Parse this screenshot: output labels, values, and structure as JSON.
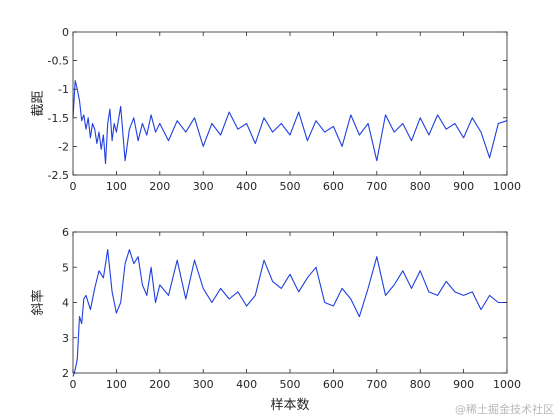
{
  "chart_data": [
    {
      "type": "line",
      "title": "",
      "xlabel": "",
      "ylabel": "截距",
      "xlim": [
        0,
        1000
      ],
      "ylim": [
        -2.5,
        0
      ],
      "xticks": [
        0,
        100,
        200,
        300,
        400,
        500,
        600,
        700,
        800,
        900,
        1000
      ],
      "yticks": [
        0,
        -0.5,
        -1,
        -1.5,
        -2,
        -2.5
      ],
      "ytick_labels": [
        "0",
        "-0.5",
        "-1",
        "-1.5",
        "-2",
        "-2.5"
      ],
      "grid": false,
      "color": "#1f3fe0",
      "series": [
        {
          "x": [
            0,
            5,
            10,
            15,
            20,
            25,
            30,
            35,
            40,
            45,
            50,
            55,
            60,
            65,
            70,
            75,
            80,
            85,
            90,
            95,
            100,
            110,
            120,
            130,
            140,
            150,
            160,
            170,
            180,
            190,
            200,
            220,
            240,
            260,
            280,
            300,
            320,
            340,
            360,
            380,
            400,
            420,
            440,
            460,
            480,
            500,
            520,
            540,
            560,
            580,
            600,
            620,
            640,
            660,
            680,
            700,
            720,
            740,
            760,
            780,
            800,
            820,
            840,
            860,
            880,
            900,
            920,
            940,
            960,
            980,
            1000
          ],
          "values": [
            -1.5,
            -0.85,
            -1.0,
            -1.2,
            -1.55,
            -1.45,
            -1.7,
            -1.5,
            -1.85,
            -1.6,
            -1.7,
            -1.95,
            -1.75,
            -2.05,
            -1.8,
            -2.3,
            -1.6,
            -1.35,
            -1.9,
            -1.6,
            -1.75,
            -1.3,
            -2.25,
            -1.7,
            -1.5,
            -1.9,
            -1.6,
            -1.8,
            -1.45,
            -1.75,
            -1.6,
            -1.9,
            -1.55,
            -1.75,
            -1.5,
            -2.0,
            -1.6,
            -1.8,
            -1.4,
            -1.7,
            -1.6,
            -1.95,
            -1.5,
            -1.75,
            -1.6,
            -1.8,
            -1.4,
            -1.9,
            -1.55,
            -1.75,
            -1.65,
            -2.0,
            -1.45,
            -1.8,
            -1.6,
            -2.25,
            -1.45,
            -1.75,
            -1.6,
            -1.9,
            -1.5,
            -1.8,
            -1.45,
            -1.7,
            -1.6,
            -1.85,
            -1.5,
            -1.75,
            -2.2,
            -1.6,
            -1.55
          ]
        }
      ]
    },
    {
      "type": "line",
      "title": "",
      "xlabel": "样本数",
      "ylabel": "斜率",
      "xlim": [
        0,
        1000
      ],
      "ylim": [
        2,
        6
      ],
      "xticks": [
        0,
        100,
        200,
        300,
        400,
        500,
        600,
        700,
        800,
        900,
        1000
      ],
      "yticks": [
        2,
        3,
        4,
        5,
        6
      ],
      "ytick_labels": [
        "2",
        "3",
        "4",
        "5",
        "6"
      ],
      "grid": false,
      "color": "#1f3fe0",
      "series": [
        {
          "x": [
            0,
            5,
            10,
            15,
            20,
            25,
            30,
            40,
            50,
            60,
            70,
            80,
            90,
            100,
            110,
            120,
            130,
            140,
            150,
            160,
            170,
            180,
            190,
            200,
            220,
            240,
            260,
            280,
            300,
            320,
            340,
            360,
            380,
            400,
            420,
            440,
            460,
            480,
            500,
            520,
            540,
            560,
            580,
            600,
            620,
            640,
            660,
            680,
            700,
            720,
            740,
            760,
            780,
            800,
            820,
            840,
            860,
            880,
            900,
            920,
            940,
            960,
            980,
            1000
          ],
          "values": [
            1.9,
            2.1,
            2.4,
            3.6,
            3.4,
            4.1,
            4.2,
            3.8,
            4.4,
            4.9,
            4.7,
            5.5,
            4.3,
            3.7,
            4.0,
            5.1,
            5.5,
            5.1,
            5.3,
            4.5,
            4.2,
            5.0,
            4.0,
            4.5,
            4.2,
            5.2,
            4.1,
            5.2,
            4.4,
            4.0,
            4.4,
            4.1,
            4.3,
            3.9,
            4.2,
            5.2,
            4.6,
            4.4,
            4.8,
            4.3,
            4.7,
            5.0,
            4.0,
            3.9,
            4.4,
            4.1,
            3.6,
            4.4,
            5.3,
            4.2,
            4.5,
            4.9,
            4.4,
            4.9,
            4.3,
            4.2,
            4.6,
            4.3,
            4.2,
            4.3,
            3.8,
            4.2,
            4.0,
            4.0
          ]
        }
      ]
    }
  ],
  "watermark": "@稀土掘金技术社区"
}
